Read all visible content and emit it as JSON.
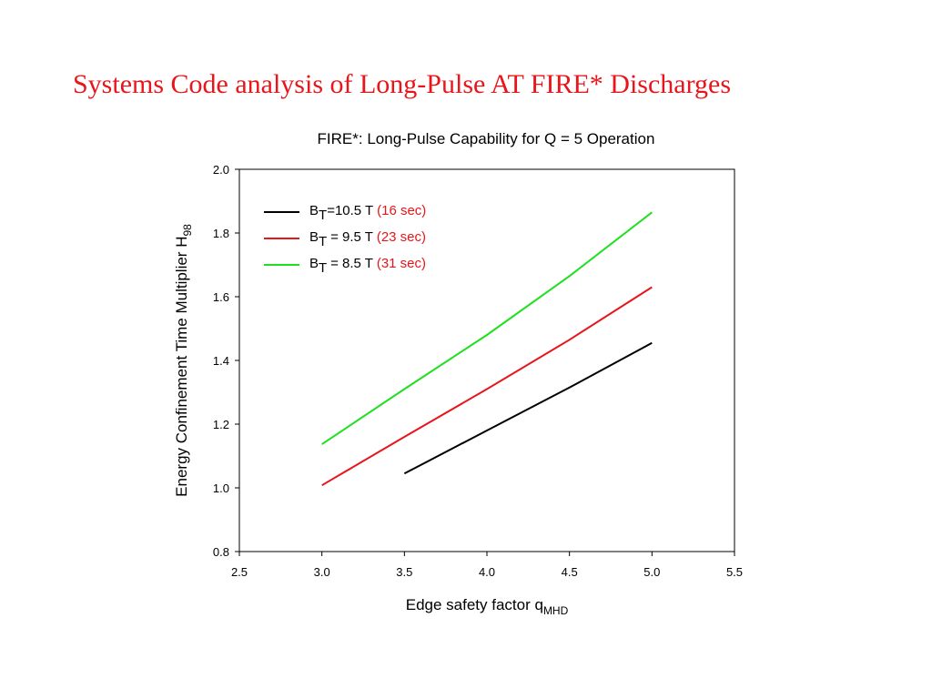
{
  "slide": {
    "title": "Systems Code analysis of Long-Pulse AT FIRE* Discharges",
    "title_color": "#E8151B"
  },
  "chart_data": {
    "type": "line",
    "title": "FIRE*:  Long-Pulse Capability for Q = 5 Operation",
    "xlabel": "Edge safety factor q",
    "xlabel_sub": "MHD",
    "ylabel": "Energy Confinement Time Multiplier H",
    "ylabel_sub": "98",
    "xlim": [
      2.5,
      5.5
    ],
    "ylim": [
      0.8,
      2.0
    ],
    "x_ticks": [
      "2.5",
      "3.0",
      "3.5",
      "4.0",
      "4.5",
      "5.0",
      "5.5"
    ],
    "y_ticks": [
      "0.8",
      "1.0",
      "1.2",
      "1.4",
      "1.6",
      "1.8",
      "2.0"
    ],
    "grid": false,
    "legend_position": "top-left",
    "series": [
      {
        "label_main": "B",
        "label_sub": "T",
        "label_rest": "=10.5 T ",
        "label_note": "(16 sec)",
        "color": "#000000",
        "x": [
          3.5,
          4.0,
          4.5,
          5.0
        ],
        "y": [
          1.045,
          1.18,
          1.315,
          1.455
        ]
      },
      {
        "label_main": "B",
        "label_sub": "T",
        "label_rest": " = 9.5 T ",
        "label_note": "(23 sec)",
        "color": "#E8151B",
        "x": [
          3.0,
          3.5,
          4.0,
          4.5,
          5.0
        ],
        "y": [
          1.008,
          1.16,
          1.31,
          1.465,
          1.63
        ]
      },
      {
        "label_main": "B",
        "label_sub": "T",
        "label_rest": " = 8.5 T ",
        "label_note": "(31 sec)",
        "color": "#1EE01E",
        "x": [
          3.0,
          3.5,
          4.0,
          4.5,
          5.0
        ],
        "y": [
          1.137,
          1.31,
          1.48,
          1.665,
          1.865
        ]
      }
    ],
    "legend_note_color": "#E8151B"
  }
}
